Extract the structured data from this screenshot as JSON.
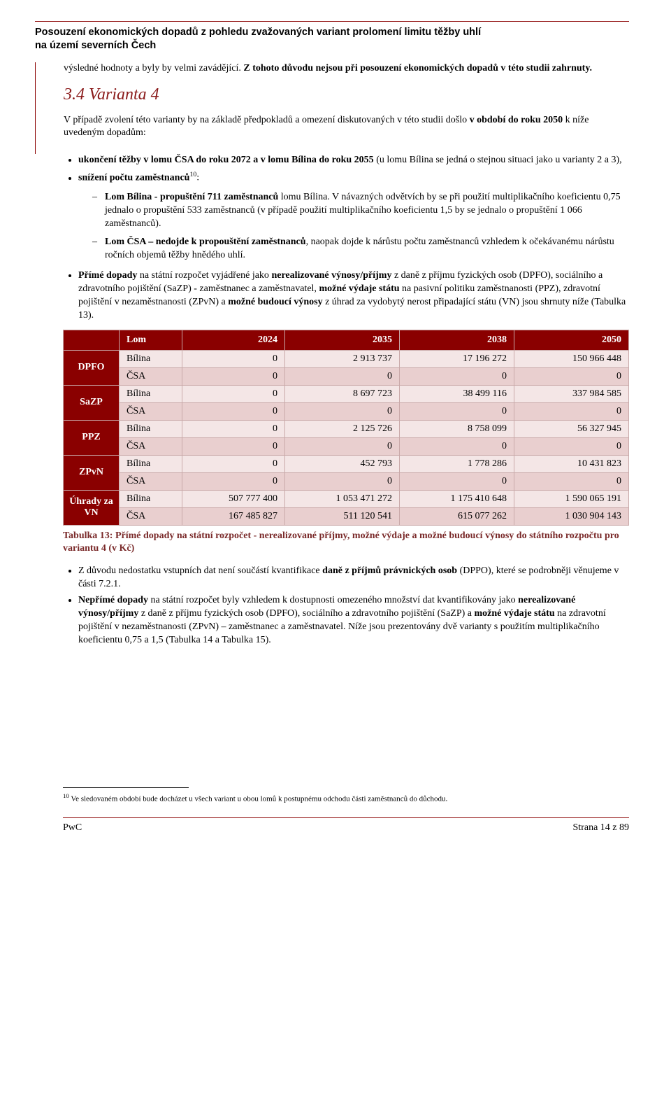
{
  "header": {
    "title_line1": "Posouzení ekonomických dopadů z pohledu zvažovaných variant prolomení limitu těžby uhlí",
    "title_line2": "na území severních Čech"
  },
  "intro": {
    "text_pre": "výsledné hodnoty a byly by velmi zavádějící. ",
    "text_bold": "Z tohoto důvodu nejsou při posouzení ekonomických dopadů v této studii zahrnuty."
  },
  "section": {
    "heading": "3.4 Varianta 4",
    "para1_pre": "V případě zvolení této varianty by na základě předpokladů a omezení diskutovaných v této studii došlo ",
    "para1_bold": "v období do roku 2050",
    "para1_post": " k níže uvedeným dopadům:"
  },
  "bullets1": [
    {
      "b1": "ukončení těžby v lomu ČSA do roku 2072 a v lomu Bílina do roku 2055",
      "t1": " (u lomu Bílina se jedná o stejnou situaci jako u varianty 2 a 3),"
    },
    {
      "b1": "snížení počtu zaměstnanců",
      "sup": "10",
      "t1": ":"
    }
  ],
  "dashes": [
    {
      "b1": "Lom Bílina - propuštění 711 zaměstnanců",
      "t1": " lomu Bílina. V návazných odvětvích by se při použití multiplikačního koeficientu 0,75 jednalo o propuštění 533 zaměstnanců (v případě použití multiplikačního koeficientu 1,5 by se jednalo o propuštění 1 066 zaměstnanců)."
    },
    {
      "b1": "Lom ČSA – nedojde k propouštění zaměstnanců",
      "t1": ", naopak dojde k nárůstu počtu zaměstnanců vzhledem k očekávanému nárůstu ročních objemů těžby hnědého uhlí."
    }
  ],
  "para_prime": {
    "b1": "Přímé dopady",
    "t1": " na státní rozpočet vyjádřené jako ",
    "b2": "nerealizované výnosy/příjmy",
    "t2": " z daně z příjmu fyzických osob (DPFO), sociálního a zdravotního pojištění (SaZP) - zaměstnanec a zaměstnavatel, ",
    "b3": "možné výdaje státu",
    "t3": " na pasivní politiku zaměstnanosti (PPZ), zdravotní pojištění v nezaměstnanosti (ZPvN) a ",
    "b4": "možné budoucí výnosy",
    "t4": " z úhrad za vydobytý nerost připadající státu (VN) jsou shrnuty níže (Tabulka 13)."
  },
  "table": {
    "header": {
      "lom": "Lom",
      "c2024": "2024",
      "c2035": "2035",
      "c2038": "2038",
      "c2050": "2050"
    },
    "groups": [
      {
        "label": "DPFO",
        "rows": [
          {
            "lom": "Bílina",
            "v": [
              "0",
              "2 913 737",
              "17 196 272",
              "150 966 448"
            ]
          },
          {
            "lom": "ČSA",
            "v": [
              "0",
              "0",
              "0",
              "0"
            ]
          }
        ]
      },
      {
        "label": "SaZP",
        "rows": [
          {
            "lom": "Bílina",
            "v": [
              "0",
              "8 697 723",
              "38 499 116",
              "337 984 585"
            ]
          },
          {
            "lom": "ČSA",
            "v": [
              "0",
              "0",
              "0",
              "0"
            ]
          }
        ]
      },
      {
        "label": "PPZ",
        "rows": [
          {
            "lom": "Bílina",
            "v": [
              "0",
              "2 125 726",
              "8 758 099",
              "56 327 945"
            ]
          },
          {
            "lom": "ČSA",
            "v": [
              "0",
              "0",
              "0",
              "0"
            ]
          }
        ]
      },
      {
        "label": "ZPvN",
        "rows": [
          {
            "lom": "Bílina",
            "v": [
              "0",
              "452 793",
              "1 778 286",
              "10 431 823"
            ]
          },
          {
            "lom": "ČSA",
            "v": [
              "0",
              "0",
              "0",
              "0"
            ]
          }
        ]
      },
      {
        "label": "Úhrady za VN",
        "rows": [
          {
            "lom": "Bílina",
            "v": [
              "507 777 400",
              "1 053 471 272",
              "1 175 410 648",
              "1 590 065 191"
            ]
          },
          {
            "lom": "ČSA",
            "v": [
              "167 485 827",
              "511 120 541",
              "615 077 262",
              "1 030 904 143"
            ]
          }
        ]
      }
    ],
    "caption": "Tabulka 13: Přímé dopady na státní rozpočet - nerealizované příjmy, možné výdaje a možné budoucí výnosy do státního rozpočtu pro variantu 4 (v Kč)"
  },
  "bullets2": [
    {
      "t1": "Z důvodu nedostatku vstupních dat není součástí kvantifikace ",
      "b1": "daně z příjmů právnických osob",
      "t2": " (DPPO), které se podrobněji věnujeme v části 7.2.1."
    },
    {
      "b0": "Nepřímé dopady",
      "t1": " na státní rozpočet byly vzhledem k dostupnosti omezeného množství dat kvantifikovány jako ",
      "b1": "nerealizované výnosy/příjmy",
      "t2": " z daně z příjmu fyzických osob (DPFO), sociálního a zdravotního pojištění (SaZP) a ",
      "b2": "možné výdaje státu",
      "t3": " na zdravotní pojištění v nezaměstnanosti (ZPvN) – zaměstnanec a zaměstnavatel. Níže jsou prezentovány dvě varianty s použitím multiplikačního koeficientu 0,75 a 1,5 (Tabulka 14 a Tabulka 15)."
    }
  ],
  "footnote": {
    "num": "10",
    "text": " Ve sledovaném období bude docházet u všech variant u obou lomů k postupnému odchodu části zaměstnanců do důchodu."
  },
  "footer": {
    "left": "PwC",
    "right": "Strana 14 z 89"
  },
  "colors": {
    "accent": "#8a0000",
    "row_light": "#f4e6e6",
    "row_dark": "#e9cfcf",
    "caption": "#7a2a2a"
  }
}
